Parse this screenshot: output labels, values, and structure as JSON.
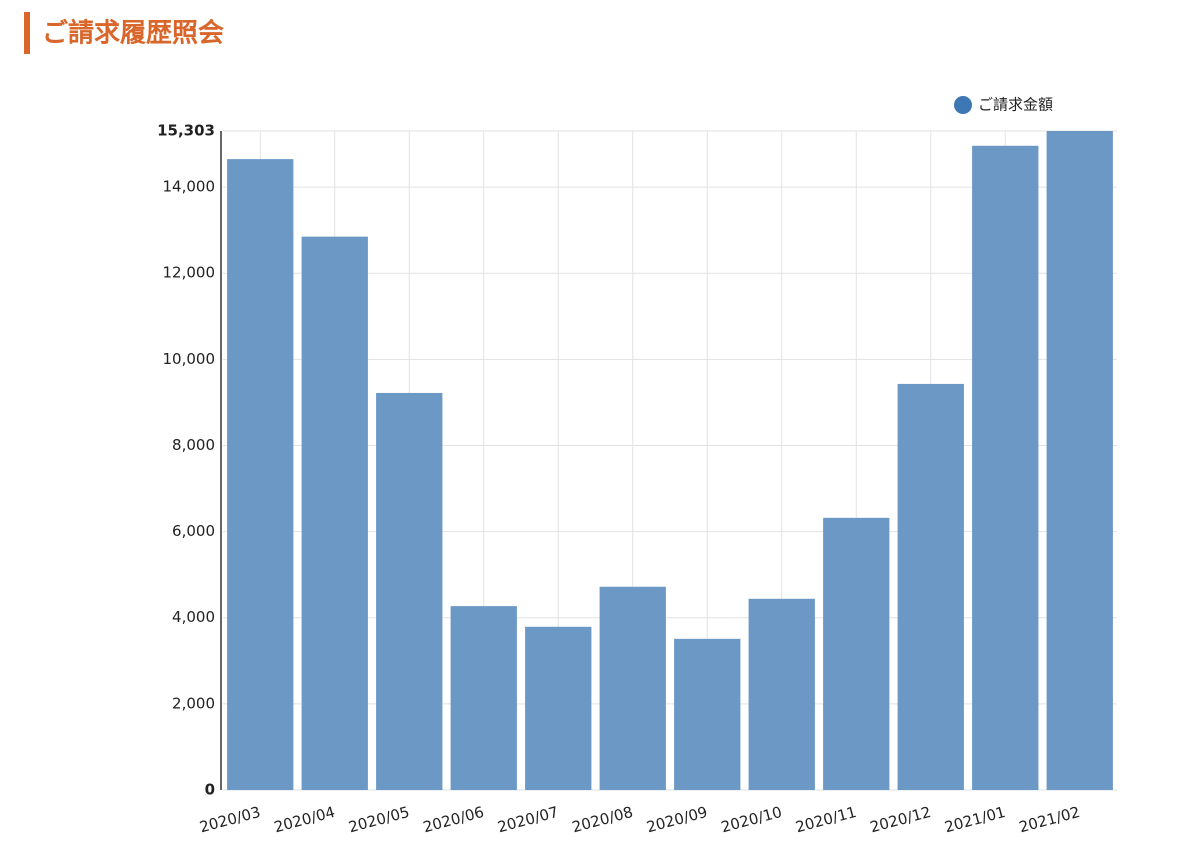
{
  "chart_data": {
    "type": "bar",
    "title": "ご請求履歴照会",
    "categories": [
      "2020/03",
      "2020/04",
      "2020/05",
      "2020/06",
      "2020/07",
      "2020/08",
      "2020/09",
      "2020/10",
      "2020/11",
      "2020/12",
      "2021/01",
      "2021/02"
    ],
    "series": [
      {
        "name": "ご請求金額",
        "color": "#6b98c5",
        "values": [
          14650,
          12850,
          9220,
          4270,
          3790,
          4720,
          3510,
          4440,
          6320,
          9430,
          14960,
          15303
        ]
      }
    ],
    "ylim": [
      0,
      15303
    ],
    "yticks": [
      0,
      {
        "value": 2000,
        "label": "2,000"
      },
      {
        "value": 4000,
        "label": "4,000"
      },
      {
        "value": 6000,
        "label": "6,000"
      },
      {
        "value": 8000,
        "label": "8,000"
      },
      {
        "value": 10000,
        "label": "10,000"
      },
      {
        "value": 12000,
        "label": "12,000"
      },
      {
        "value": 14000,
        "label": "14,000"
      },
      {
        "value": 15303,
        "label": "15,303"
      }
    ],
    "grid": true,
    "legend": "top-right"
  }
}
